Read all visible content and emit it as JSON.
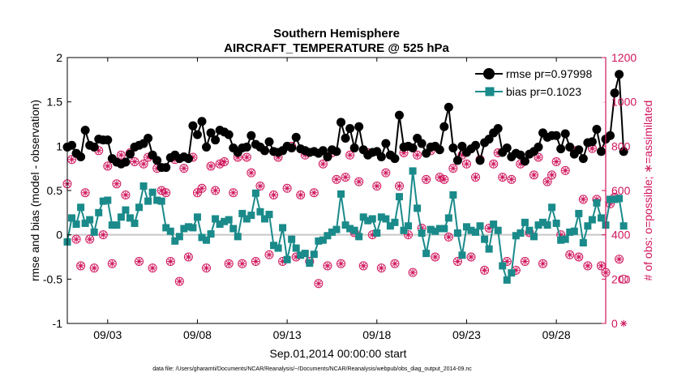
{
  "chart_data": {
    "type": "line",
    "title": "Southern Hemisphere",
    "subtitle": "AIRCRAFT_TEMPERATURE @ 525 hPa",
    "xlabel": "Sep.01,2014 00:00:00 start",
    "ylabel": "rmse and bias (model - observation)",
    "y2label": "# of obs: o=possible; ∗=assimilated",
    "footnote": "data file: /Users/gharamti/Documents/NCAR/Reanalysis/~/Documents/NCAR/Reanalysis/webpub/obs_diag_output_2014-09.nc",
    "xlim": [
      0.75,
      30.75
    ],
    "ylim": [
      -1,
      2
    ],
    "y2lim": [
      0,
      1200
    ],
    "x_ticks": [
      3,
      8,
      13,
      18,
      23,
      28
    ],
    "x_tick_labels": [
      "09/03",
      "09/08",
      "09/13",
      "09/18",
      "09/23",
      "09/28"
    ],
    "y_ticks": [
      -1,
      -0.5,
      0,
      0.5,
      1,
      1.5,
      2
    ],
    "y_tick_labels": [
      "-1",
      "-0.5",
      "0",
      "0.5",
      "1",
      "1.5",
      "2"
    ],
    "y2_ticks": [
      0,
      200,
      400,
      600,
      800,
      1000,
      1200
    ],
    "y2_tick_labels": [
      "0",
      "200",
      "400",
      "600",
      "800",
      "1000",
      "1200"
    ],
    "legend_position": "top-right",
    "x_start": 0.75,
    "x_step": 0.25,
    "series": [
      {
        "name": "rmse pr=0.97998",
        "color": "#000000",
        "marker": "circle",
        "axis": "left",
        "values": [
          0.99,
          1.01,
          0.92,
          0.88,
          1.18,
          1.01,
          0.99,
          1.08,
          1.07,
          1.07,
          0.86,
          0.82,
          0.8,
          0.82,
          0.91,
          0.99,
          1.01,
          1.03,
          1.09,
          0.9,
          0.84,
          0.76,
          0.76,
          0.87,
          0.9,
          0.86,
          0.88,
          0.86,
          1.23,
          1.13,
          1.28,
          0.99,
          1.15,
          1.07,
          1.18,
          1.16,
          1.13,
          0.98,
          0.93,
          0.98,
          0.99,
          1.12,
          1.02,
          0.99,
          0.95,
          1.05,
          0.94,
          0.93,
          0.95,
          1.0,
          0.98,
          1.1,
          0.97,
          0.95,
          0.93,
          0.94,
          0.92,
          0.95,
          0.88,
          0.96,
          0.94,
          1.27,
          1.09,
          1.2,
          0.98,
          1.22,
          0.96,
          0.9,
          0.93,
          0.94,
          0.88,
          1.03,
          0.9,
          0.86,
          1.35,
          0.99,
          1.0,
          0.98,
          1.09,
          1.03,
          0.92,
          0.99,
          1.0,
          0.96,
          1.22,
          1.44,
          0.98,
          0.84,
          1.0,
          0.93,
          0.97,
          1.01,
          0.84,
          1.04,
          1.08,
          1.15,
          1.2,
          0.93,
          0.98,
          0.88,
          0.92,
          0.9,
          0.83,
          0.91,
          0.94,
          0.99,
          1.15,
          1.1,
          1.12,
          1.12,
          0.97,
          1.14,
          0.99,
          0.91,
          0.96,
          0.86,
          1.04,
          1.05,
          1.19,
          0.94,
          1.08,
          1.12,
          1.6,
          1.81,
          0.94
        ]
      },
      {
        "name": "bias pr=0.1023",
        "color": "#1a8a8a",
        "marker": "square",
        "axis": "left",
        "values": [
          -0.08,
          0.19,
          0.12,
          0.31,
          0.13,
          0.17,
          0.03,
          0.25,
          0.38,
          0.39,
          0.11,
          0.11,
          0.2,
          0.28,
          0.19,
          0.13,
          0.31,
          0.55,
          0.38,
          0.48,
          0.39,
          0.38,
          0.08,
          0.04,
          -0.07,
          -0.02,
          0.07,
          0.09,
          0.08,
          0.2,
          -0.03,
          -0.06,
          0.01,
          0.18,
          0.12,
          0.15,
          0.17,
          0.07,
          -0.02,
          0.24,
          0.18,
          0.22,
          0.47,
          0.26,
          0.18,
          0.23,
          -0.12,
          -0.15,
          0.08,
          -0.28,
          -0.05,
          -0.15,
          -0.23,
          -0.21,
          -0.32,
          -0.22,
          -0.07,
          -0.06,
          -0.01,
          0.03,
          0.06,
          0.46,
          0.11,
          0.07,
          0.05,
          -0.02,
          0.2,
          0.16,
          0.18,
          0.02,
          0.2,
          0.18,
          0.1,
          0.14,
          0.43,
          0.05,
          0.1,
          0.72,
          0.3,
          0.02,
          -0.21,
          0.06,
          0.04,
          0.07,
          0.07,
          0.19,
          0.45,
          0.02,
          -0.23,
          0.09,
          0.05,
          0.03,
          0.1,
          -0.05,
          -0.16,
          0.12,
          0.05,
          -0.35,
          -0.51,
          -0.43,
          -0.01,
          0.02,
          0.14,
          0.05,
          -0.02,
          0.11,
          0.14,
          0.11,
          0.31,
          0.13,
          -0.06,
          -0.05,
          0.03,
          0.04,
          0.24,
          -0.09,
          0.1,
          0.17,
          0.36,
          0.19,
          0.11,
          0.4,
          0.4,
          0.41,
          0.1
        ]
      },
      {
        "name": "obs possible",
        "color": "#d0155c",
        "marker": "open-circle",
        "axis": "right",
        "values": [
          630,
          740,
          380,
          260,
          590,
          380,
          250,
          780,
          400,
          710,
          270,
          630,
          760,
          580,
          770,
          730,
          280,
          720,
          750,
          250,
          700,
          600,
          590,
          280,
          740,
          190,
          700,
          300,
          750,
          590,
          610,
          250,
          710,
          600,
          720,
          730,
          270,
          590,
          750,
          270,
          750,
          680,
          280,
          620,
          780,
          310,
          580,
          750,
          280,
          610,
          800,
          300,
          580,
          760,
          280,
          590,
          180,
          720,
          260,
          770,
          650,
          270,
          660,
          760,
          410,
          640,
          260,
          770,
          400,
          620,
          250,
          680,
          760,
          270,
          620,
          770,
          400,
          230,
          760,
          430,
          650,
          780,
          300,
          660,
          650,
          390,
          700,
          280,
          760,
          720,
          300,
          660,
          740,
          240,
          430,
          720,
          770,
          660,
          280,
          650,
          240,
          720,
          280,
          410,
          670,
          750,
          270,
          640,
          670,
          730,
          400,
          690,
          310,
          780,
          300,
          560,
          260,
          790,
          560,
          260,
          230,
          540,
          570,
          290,
          200
        ]
      },
      {
        "name": "obs assimilated",
        "color": "#d0155c",
        "marker": "asterisk",
        "axis": "right",
        "values": [
          630,
          740,
          380,
          260,
          590,
          380,
          250,
          780,
          400,
          710,
          270,
          630,
          760,
          580,
          770,
          730,
          280,
          720,
          750,
          250,
          700,
          600,
          590,
          280,
          740,
          190,
          700,
          300,
          750,
          590,
          610,
          250,
          710,
          600,
          720,
          730,
          270,
          590,
          750,
          270,
          750,
          680,
          280,
          620,
          780,
          310,
          580,
          750,
          280,
          610,
          800,
          300,
          580,
          760,
          280,
          590,
          180,
          720,
          260,
          770,
          650,
          270,
          660,
          760,
          410,
          640,
          260,
          770,
          400,
          620,
          250,
          680,
          760,
          270,
          620,
          770,
          400,
          230,
          760,
          430,
          650,
          780,
          300,
          660,
          650,
          390,
          700,
          280,
          760,
          720,
          300,
          660,
          740,
          240,
          430,
          720,
          770,
          660,
          280,
          650,
          240,
          720,
          280,
          410,
          670,
          750,
          270,
          640,
          670,
          730,
          400,
          690,
          310,
          780,
          300,
          560,
          260,
          790,
          560,
          260,
          230,
          540,
          570,
          290,
          0
        ]
      }
    ]
  }
}
